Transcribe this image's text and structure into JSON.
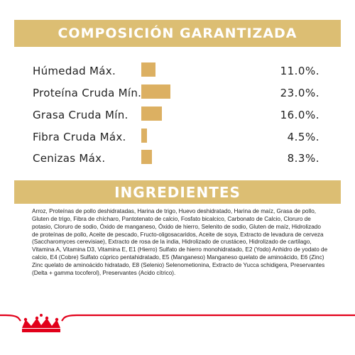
{
  "composition": {
    "title": "COMPOSICIÓN GARANTIZADA",
    "rows": [
      {
        "label": "Húmedad Máx.",
        "value": "11.0%.",
        "percent": 11.0
      },
      {
        "label": "Proteína Cruda Mín.",
        "value": "23.0%.",
        "percent": 23.0
      },
      {
        "label": "Grasa Cruda Mín.",
        "value": "16.0%.",
        "percent": 16.0
      },
      {
        "label": "Fibra Cruda Máx.",
        "value": "4.5%.",
        "percent": 4.5
      },
      {
        "label": "Cenizas Máx.",
        "value": "8.3%.",
        "percent": 8.3
      }
    ]
  },
  "ingredients": {
    "title": "INGREDIENTES",
    "text": "Arroz, Proteínas de pollo deshidratadas, Harina de trigo, Huevo deshidratado, Harina de maíz, Grasa de pollo, Gluten de trigo, Fibra de chícharo, Pantotenato de calcio, Fosfato bicalcico, Carbonato de Calcio, Cloruro de potasio, Cloruro de sodio, Óxido de manganeso, Óxido de hierro, Selenito de sodio, Gluten de maíz, Hidrolizado de proteínas de pollo, Aceite de pescado, Fructo-oligosacaridos, Aceite de soya, Extracto de levadura de cerveza (Saccharomyces cerevisiae), Extracto de rosa de la india, Hidrolizado de crustáceo, Hidrolizado de cartilago, Vitamina A, Vitamina D3, Vitamina E, E1 (Hierro) Sulfato de hierro monohidratado, E2 (Yodo) Anhidro de yodato de calcio, E4 (Cobre) Sulfato cúprico pentahidratado, E5 (Manganeso) Manganeso quelato de aminoácido, E6 (Zinc) Zinc quelato de aminoácido hidratado, E8 (Selenio) Selenometionina, Extracto de Yucca schidigera, Preservantes (Delta + gamma tocoferol), Preservantes (Acido cítrico)."
  },
  "colors": {
    "banner": "#dcbe73",
    "bar": "#dcb062",
    "brand_red": "#e2001a"
  },
  "footer": {
    "logo": "crown-icon"
  }
}
